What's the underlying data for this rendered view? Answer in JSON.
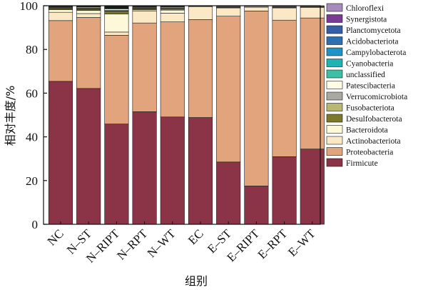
{
  "chart_data": {
    "type": "bar",
    "stacked": true,
    "percent_scale": true,
    "xlabel": "组别",
    "ylabel": "相对丰度/%",
    "ylim": [
      0,
      100
    ],
    "yticks": [
      0,
      20,
      40,
      60,
      80,
      100
    ],
    "legend_position": "right",
    "grid": false,
    "categories": [
      "NC",
      "N–ST",
      "N–RIPT",
      "N–RPT",
      "N–WT",
      "EC",
      "E–ST",
      "E–RIPT",
      "E–RPT",
      "E–WT"
    ],
    "series": [
      {
        "name": "Firmicute",
        "color": "#8c3447",
        "values": [
          65.4,
          62.2,
          46.8,
          51.5,
          49.1,
          48.8,
          28.5,
          17.5,
          30.9,
          34.4
        ]
      },
      {
        "name": "Proteobacteria",
        "color": "#e2a47c",
        "values": [
          27.8,
          32.5,
          41.4,
          40.6,
          43.5,
          44.8,
          66.7,
          80.0,
          62.4,
          59.9
        ]
      },
      {
        "name": "Actinobacteriota",
        "color": "#fbe8c4",
        "values": [
          3.8,
          1.8,
          1.5,
          5.4,
          4.0,
          5.9,
          3.8,
          1.7,
          5.6,
          4.8
        ]
      },
      {
        "name": "Bacteroidota",
        "color": "#fdf8d7",
        "values": [
          1.2,
          1.4,
          8.4,
          0.6,
          1.4,
          0.2,
          0.2,
          0.4,
          0.2,
          0.3
        ]
      },
      {
        "name": "Desulfobacterota",
        "color": "#7c7a2a",
        "values": [
          0.5,
          0.5,
          1.0,
          0.5,
          0.5,
          0.1,
          0.5,
          0.1,
          0.5,
          0.4
        ]
      },
      {
        "name": "Fusobacteriota",
        "color": "#b8b970",
        "values": [
          0.3,
          0.3,
          0.4,
          0.3,
          0.3,
          0.1,
          0.1,
          0.1,
          0.1,
          0.1
        ]
      },
      {
        "name": "Verrucomicrobiota",
        "color": "#a9a9a1",
        "values": [
          0.2,
          0.3,
          0.3,
          0.3,
          0.3,
          0.0,
          0.1,
          0.0,
          0.1,
          0.0
        ]
      },
      {
        "name": "Patescibacteria",
        "color": "#fffce6",
        "values": [
          0.3,
          0.4,
          0.7,
          0.3,
          0.4,
          0.0,
          0.1,
          0.1,
          0.1,
          0.0
        ]
      },
      {
        "name": "unclassified",
        "color": "#3cbfa5",
        "values": [
          0.1,
          0.2,
          0.3,
          0.2,
          0.2,
          0.0,
          0.0,
          0.0,
          0.0,
          0.0
        ]
      },
      {
        "name": "Cyanobacteria",
        "color": "#20b3b4",
        "values": [
          0.1,
          0.1,
          0.2,
          0.1,
          0.1,
          0.0,
          0.0,
          0.0,
          0.0,
          0.0
        ]
      },
      {
        "name": "Campylobacterota",
        "color": "#1f93c5",
        "values": [
          0.1,
          0.1,
          0.2,
          0.1,
          0.1,
          0.0,
          0.0,
          0.0,
          0.0,
          0.0
        ]
      },
      {
        "name": "Acidobacteriota",
        "color": "#2c70b3",
        "values": [
          0.1,
          0.1,
          0.2,
          0.1,
          0.1,
          0.0,
          0.0,
          0.0,
          0.0,
          0.0
        ]
      },
      {
        "name": "Planctomycetota",
        "color": "#345ea7",
        "values": [
          0.1,
          0.1,
          0.2,
          0.0,
          0.0,
          0.0,
          0.0,
          0.0,
          0.0,
          0.0
        ]
      },
      {
        "name": "Synergistota",
        "color": "#7a3b96",
        "values": [
          0.0,
          0.0,
          0.2,
          0.0,
          0.0,
          0.0,
          0.0,
          0.0,
          0.0,
          0.0
        ]
      },
      {
        "name": "Chloroflexi",
        "color": "#a78bbd",
        "values": [
          0.0,
          0.1,
          0.2,
          0.0,
          0.0,
          0.0,
          0.0,
          0.0,
          0.0,
          0.0
        ]
      }
    ]
  }
}
